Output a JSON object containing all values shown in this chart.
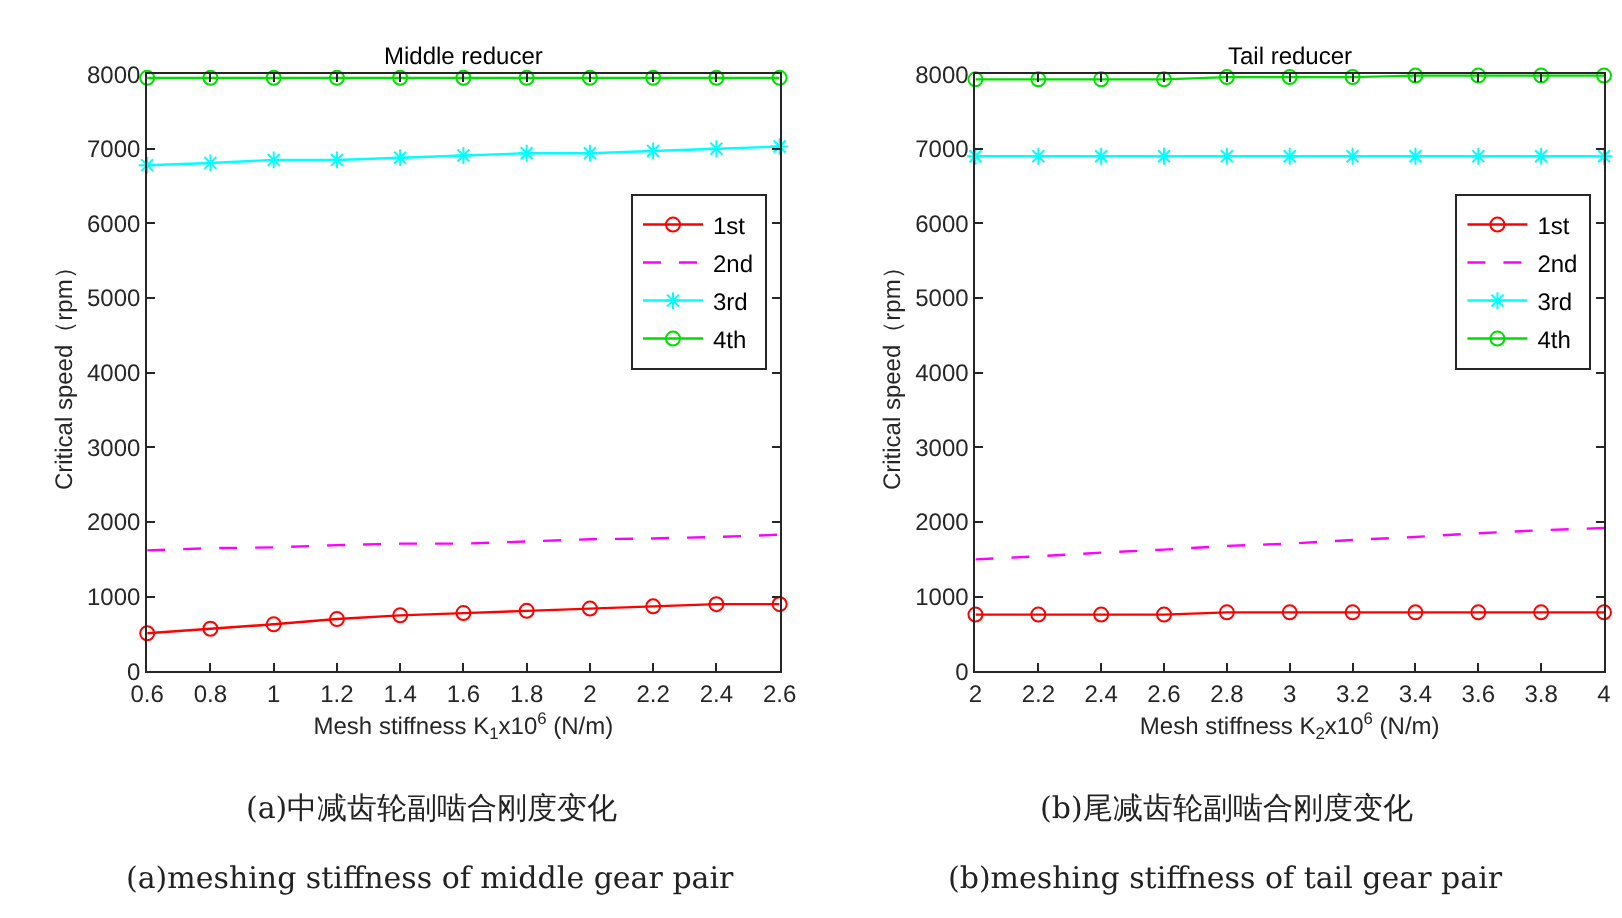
{
  "chart_data": [
    {
      "type": "line",
      "title": "Middle reducer",
      "xlabel": "Mesh stiffness K$_{1}$x10$^{6}$ (N/m)",
      "ylabel": "Critical speed（rpm）",
      "x": [
        0.6,
        0.8,
        1.0,
        1.2,
        1.4,
        1.6,
        1.8,
        2.0,
        2.2,
        2.4,
        2.6
      ],
      "series": [
        {
          "name": "1st",
          "color": "#ff0000",
          "marker": "circle",
          "line_style": "solid",
          "values": [
            510,
            570,
            630,
            700,
            750,
            780,
            810,
            840,
            870,
            900,
            900
          ]
        },
        {
          "name": "2nd",
          "color": "#ff00ff",
          "marker": "none",
          "line_style": "dashed",
          "values": [
            1620,
            1650,
            1660,
            1690,
            1710,
            1710,
            1740,
            1770,
            1780,
            1800,
            1830
          ]
        },
        {
          "name": "3rd",
          "color": "#00ffff",
          "marker": "cross",
          "line_style": "solid",
          "values": [
            6780,
            6810,
            6850,
            6850,
            6880,
            6910,
            6940,
            6940,
            6970,
            7000,
            7030
          ]
        },
        {
          "name": "4th",
          "color": "#00dd00",
          "marker": "circle",
          "line_style": "solid",
          "values": [
            7950,
            7950,
            7950,
            7950,
            7950,
            7950,
            7950,
            7950,
            7950,
            7950,
            7950
          ]
        }
      ],
      "xlim": [
        0.6,
        2.6
      ],
      "xticks": [
        0.6,
        0.8,
        1,
        1.2,
        1.4,
        1.6,
        1.8,
        2,
        2.2,
        2.4,
        2.6
      ],
      "ylim": [
        0,
        8000
      ],
      "yticks": [
        0,
        1000,
        2000,
        3000,
        4000,
        5000,
        6000,
        7000,
        8000
      ],
      "legend": "top right",
      "annotations": [
        "(a)中减齿轮副啮合刚度变化",
        "(a)meshing stiffness of middle gear pair"
      ]
    },
    {
      "type": "line",
      "title": "Tail reducer",
      "xlabel": "Mesh stiffness K$_{2}$x10$^{6}$ (N/m)",
      "ylabel": "Critical speed（rpm）",
      "x": [
        2.0,
        2.2,
        2.4,
        2.6,
        2.8,
        3.0,
        3.2,
        3.4,
        3.6,
        3.8,
        4.0
      ],
      "series": [
        {
          "name": "1st",
          "color": "#ff0000",
          "marker": "circle",
          "line_style": "solid",
          "values": [
            760,
            760,
            760,
            760,
            790,
            790,
            790,
            790,
            790,
            790,
            790
          ]
        },
        {
          "name": "2nd",
          "color": "#ff00ff",
          "marker": "none",
          "line_style": "dashed",
          "values": [
            1500,
            1540,
            1590,
            1630,
            1680,
            1710,
            1760,
            1800,
            1850,
            1890,
            1920
          ]
        },
        {
          "name": "3rd",
          "color": "#00ffff",
          "marker": "cross",
          "line_style": "solid",
          "values": [
            6900,
            6900,
            6900,
            6900,
            6900,
            6900,
            6900,
            6900,
            6900,
            6900,
            6900
          ]
        },
        {
          "name": "4th",
          "color": "#00dd00",
          "marker": "circle",
          "line_style": "solid",
          "values": [
            7930,
            7930,
            7930,
            7930,
            7960,
            7960,
            7960,
            7980,
            7980,
            7980,
            7980
          ]
        }
      ],
      "xlim": [
        2,
        4
      ],
      "xticks": [
        2,
        2.2,
        2.4,
        2.6,
        2.8,
        3,
        3.2,
        3.4,
        3.6,
        3.8,
        4
      ],
      "ylim": [
        0,
        8000
      ],
      "yticks": [
        0,
        1000,
        2000,
        3000,
        4000,
        5000,
        6000,
        7000,
        8000
      ],
      "legend": "top right",
      "annotations": [
        "(b)尾减齿轮副啮合刚度变化",
        "(b)meshing stiffness of tail gear pair"
      ]
    }
  ]
}
